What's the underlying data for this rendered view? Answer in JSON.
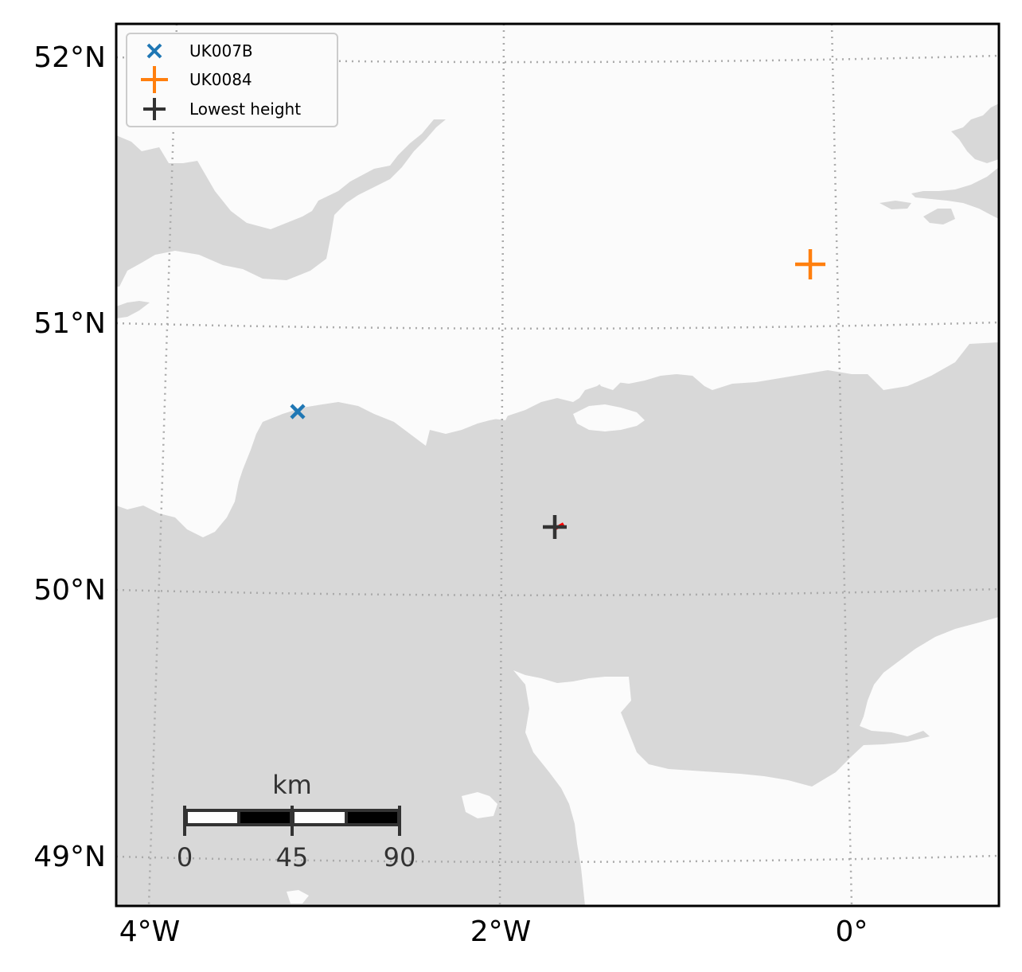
{
  "map": {
    "x_ticks": [
      {
        "label": "4°W"
      },
      {
        "label": "2°W"
      },
      {
        "label": "0°"
      }
    ],
    "y_ticks": [
      {
        "label": "52°N"
      },
      {
        "label": "51°N"
      },
      {
        "label": "50°N"
      },
      {
        "label": "49°N"
      }
    ],
    "grid": "dotted",
    "colors": {
      "land": "#d8d8d8",
      "sea": "#fbfbfb",
      "grid": "#aaaaaa",
      "UK007B": "#1f77b4",
      "UK0084": "#ff7f0e",
      "lowest": "#333333",
      "track": "#ff0000"
    }
  },
  "legend": {
    "placement": "top-left",
    "items": [
      {
        "label": "UK007B",
        "marker": "x"
      },
      {
        "label": "UK0084",
        "marker": "+"
      },
      {
        "label": "Lowest height",
        "marker": "+"
      }
    ]
  },
  "points": [
    {
      "name": "UK007B",
      "marker": "x",
      "lon": -3.1,
      "lat": 50.66
    },
    {
      "name": "UK0084",
      "marker": "+",
      "lon": -0.25,
      "lat": 51.22
    },
    {
      "name": "Lowest height",
      "marker": "+",
      "lon": -1.72,
      "lat": 50.24
    }
  ],
  "scale_bar": {
    "unit": "km",
    "labels": [
      "0",
      "45",
      "90"
    ]
  }
}
